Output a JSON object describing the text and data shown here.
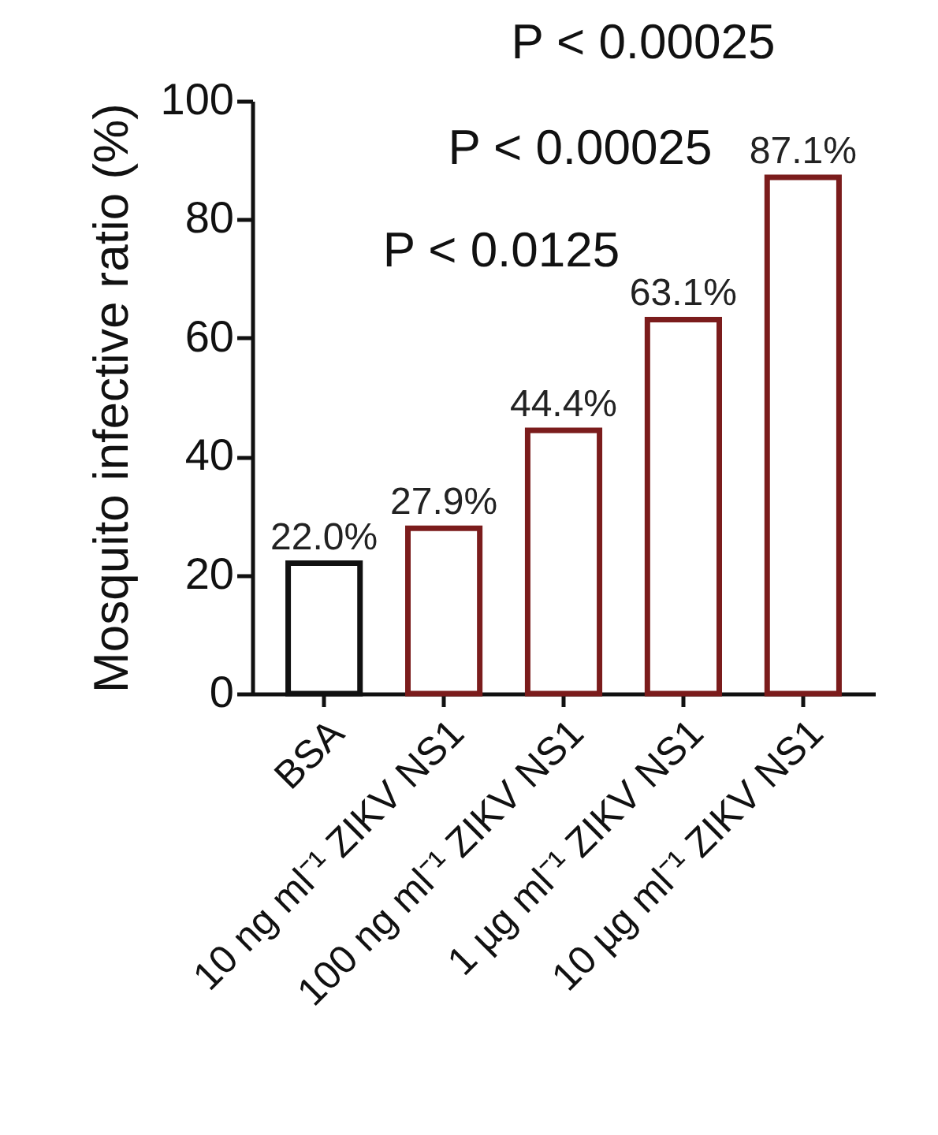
{
  "chart_data": {
    "type": "bar",
    "ylabel": "Mosquito infective ratio (%)",
    "categories": [
      "BSA",
      "10 ng ml⁻¹ ZIKV NS1",
      "100 ng ml⁻¹ ZIKV NS1",
      "1 µg ml⁻¹ ZIKV NS1",
      "10 µg ml⁻¹ ZIKV NS1"
    ],
    "values": [
      22.0,
      27.9,
      44.4,
      63.1,
      87.1
    ],
    "colors": [
      "#111111",
      "#7b1c1c",
      "#7b1c1c",
      "#7b1c1c",
      "#7b1c1c"
    ],
    "value_labels": [
      "22.0%",
      "27.9%",
      "44.4%",
      "63.1%",
      "87.1%"
    ],
    "ylim": [
      0,
      100
    ],
    "yticks": [
      0,
      20,
      40,
      60,
      80,
      100
    ],
    "grid": false,
    "annotations": [
      "P < 0.00025",
      "P < 0.00025",
      "P < 0.0125"
    ]
  }
}
